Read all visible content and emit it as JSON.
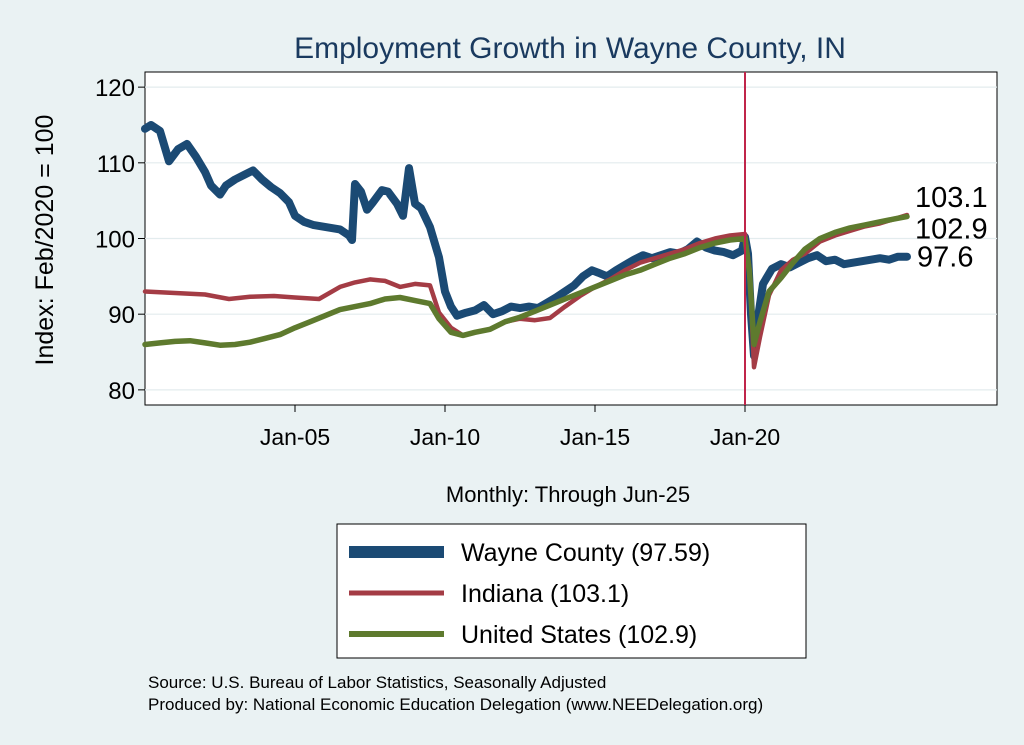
{
  "chart_data": {
    "type": "line",
    "title": "Employment Growth in Wayne  County, IN",
    "ylabel": "Index: Feb/2020 = 100",
    "xlabel": "Monthly: Through Jun-25",
    "ylim": [
      78,
      122
    ],
    "yticks": [
      80,
      90,
      100,
      110,
      120
    ],
    "xlim": [
      2000.0,
      2028.4
    ],
    "xticks": [
      {
        "label": "Jan-05",
        "x": 2005.0
      },
      {
        "label": "Jan-10",
        "x": 2010.0
      },
      {
        "label": "Jan-15",
        "x": 2015.0
      },
      {
        "label": "Jan-20",
        "x": 2020.0
      }
    ],
    "vline": {
      "x": 2020.0,
      "color": "#c0254a"
    },
    "grid": true,
    "series": [
      {
        "name": "Wayne  County",
        "color": "#1b4a74",
        "legend_label": "Wayne  County (97.59)",
        "end_label": "97.6",
        "points": [
          [
            2000.0,
            114.5
          ],
          [
            2000.2,
            115.0
          ],
          [
            2000.5,
            114.2
          ],
          [
            2000.8,
            110.2
          ],
          [
            2001.1,
            111.8
          ],
          [
            2001.4,
            112.5
          ],
          [
            2001.7,
            110.8
          ],
          [
            2002.0,
            108.8
          ],
          [
            2002.2,
            107.0
          ],
          [
            2002.5,
            105.8
          ],
          [
            2002.7,
            107.0
          ],
          [
            2003.0,
            107.8
          ],
          [
            2003.3,
            108.4
          ],
          [
            2003.6,
            109.0
          ],
          [
            2003.9,
            107.8
          ],
          [
            2004.2,
            106.8
          ],
          [
            2004.5,
            106.0
          ],
          [
            2004.8,
            104.8
          ],
          [
            2005.0,
            103.0
          ],
          [
            2005.3,
            102.2
          ],
          [
            2005.6,
            101.8
          ],
          [
            2005.9,
            101.6
          ],
          [
            2006.2,
            101.4
          ],
          [
            2006.5,
            101.2
          ],
          [
            2006.8,
            100.4
          ],
          [
            2006.9,
            99.8
          ],
          [
            2007.0,
            107.2
          ],
          [
            2007.2,
            106.2
          ],
          [
            2007.4,
            103.8
          ],
          [
            2007.6,
            104.8
          ],
          [
            2007.9,
            106.4
          ],
          [
            2008.1,
            106.2
          ],
          [
            2008.4,
            104.6
          ],
          [
            2008.6,
            103.0
          ],
          [
            2008.8,
            109.3
          ],
          [
            2009.0,
            104.6
          ],
          [
            2009.2,
            104.0
          ],
          [
            2009.5,
            101.5
          ],
          [
            2009.8,
            97.5
          ],
          [
            2010.0,
            93.0
          ],
          [
            2010.2,
            91.0
          ],
          [
            2010.4,
            89.8
          ],
          [
            2010.7,
            90.2
          ],
          [
            2011.0,
            90.5
          ],
          [
            2011.3,
            91.2
          ],
          [
            2011.6,
            90.0
          ],
          [
            2011.9,
            90.4
          ],
          [
            2012.2,
            91.0
          ],
          [
            2012.5,
            90.8
          ],
          [
            2012.8,
            91.0
          ],
          [
            2013.1,
            90.8
          ],
          [
            2013.4,
            91.5
          ],
          [
            2013.7,
            92.2
          ],
          [
            2014.0,
            93.0
          ],
          [
            2014.3,
            93.8
          ],
          [
            2014.6,
            95.0
          ],
          [
            2014.9,
            95.8
          ],
          [
            2015.1,
            95.5
          ],
          [
            2015.4,
            95.0
          ],
          [
            2015.7,
            95.8
          ],
          [
            2016.0,
            96.5
          ],
          [
            2016.3,
            97.2
          ],
          [
            2016.6,
            97.8
          ],
          [
            2016.9,
            97.4
          ],
          [
            2017.2,
            97.8
          ],
          [
            2017.5,
            98.2
          ],
          [
            2017.8,
            98.0
          ],
          [
            2018.1,
            98.6
          ],
          [
            2018.4,
            99.6
          ],
          [
            2018.7,
            98.8
          ],
          [
            2019.0,
            98.4
          ],
          [
            2019.3,
            98.2
          ],
          [
            2019.6,
            97.8
          ],
          [
            2019.9,
            98.4
          ],
          [
            2020.0,
            100.2
          ],
          [
            2020.1,
            98.0
          ],
          [
            2020.2,
            90.0
          ],
          [
            2020.3,
            84.5
          ],
          [
            2020.45,
            90.0
          ],
          [
            2020.6,
            94.0
          ],
          [
            2020.9,
            96.0
          ],
          [
            2021.2,
            96.6
          ],
          [
            2021.5,
            96.2
          ],
          [
            2021.8,
            96.8
          ],
          [
            2022.1,
            97.4
          ],
          [
            2022.4,
            97.8
          ],
          [
            2022.7,
            97.0
          ],
          [
            2023.0,
            97.2
          ],
          [
            2023.3,
            96.6
          ],
          [
            2023.6,
            96.8
          ],
          [
            2023.9,
            97.0
          ],
          [
            2024.2,
            97.2
          ],
          [
            2024.5,
            97.4
          ],
          [
            2024.8,
            97.2
          ],
          [
            2025.1,
            97.6
          ],
          [
            2025.4,
            97.59
          ]
        ]
      },
      {
        "name": "Indiana",
        "color": "#a43c45",
        "legend_label": "Indiana (103.1)",
        "end_label": "103.1",
        "points": [
          [
            2000.0,
            93.0
          ],
          [
            2001.0,
            92.8
          ],
          [
            2002.0,
            92.6
          ],
          [
            2002.8,
            92.0
          ],
          [
            2003.5,
            92.3
          ],
          [
            2004.3,
            92.4
          ],
          [
            2005.0,
            92.2
          ],
          [
            2005.8,
            92.0
          ],
          [
            2006.5,
            93.6
          ],
          [
            2007.0,
            94.2
          ],
          [
            2007.5,
            94.6
          ],
          [
            2008.0,
            94.4
          ],
          [
            2008.5,
            93.6
          ],
          [
            2009.0,
            94.0
          ],
          [
            2009.5,
            93.8
          ],
          [
            2009.8,
            90.2
          ],
          [
            2010.2,
            88.2
          ],
          [
            2010.6,
            87.2
          ],
          [
            2011.0,
            87.6
          ],
          [
            2011.5,
            88.0
          ],
          [
            2012.0,
            89.0
          ],
          [
            2012.5,
            89.4
          ],
          [
            2013.0,
            89.2
          ],
          [
            2013.5,
            89.5
          ],
          [
            2014.0,
            91.0
          ],
          [
            2014.5,
            92.4
          ],
          [
            2015.0,
            93.6
          ],
          [
            2015.5,
            94.6
          ],
          [
            2016.0,
            95.8
          ],
          [
            2016.5,
            96.8
          ],
          [
            2017.0,
            97.4
          ],
          [
            2017.5,
            98.0
          ],
          [
            2018.0,
            98.6
          ],
          [
            2018.5,
            99.4
          ],
          [
            2019.0,
            100.0
          ],
          [
            2019.5,
            100.4
          ],
          [
            2020.0,
            100.6
          ],
          [
            2020.15,
            96.0
          ],
          [
            2020.3,
            83.0
          ],
          [
            2020.5,
            87.0
          ],
          [
            2020.8,
            92.5
          ],
          [
            2021.2,
            95.8
          ],
          [
            2021.6,
            97.2
          ],
          [
            2022.0,
            98.0
          ],
          [
            2022.5,
            99.6
          ],
          [
            2023.0,
            100.4
          ],
          [
            2023.5,
            101.0
          ],
          [
            2024.0,
            101.6
          ],
          [
            2024.5,
            102.0
          ],
          [
            2025.0,
            102.6
          ],
          [
            2025.4,
            103.1
          ]
        ]
      },
      {
        "name": "United States",
        "color": "#5e7a2e",
        "legend_label": "United States (102.9)",
        "end_label": "102.9",
        "points": [
          [
            2000.0,
            86.0
          ],
          [
            2000.5,
            86.2
          ],
          [
            2001.0,
            86.4
          ],
          [
            2001.5,
            86.5
          ],
          [
            2002.0,
            86.2
          ],
          [
            2002.5,
            85.9
          ],
          [
            2003.0,
            86.0
          ],
          [
            2003.5,
            86.3
          ],
          [
            2004.0,
            86.8
          ],
          [
            2004.5,
            87.3
          ],
          [
            2005.0,
            88.2
          ],
          [
            2005.5,
            89.0
          ],
          [
            2006.0,
            89.8
          ],
          [
            2006.5,
            90.6
          ],
          [
            2007.0,
            91.0
          ],
          [
            2007.5,
            91.4
          ],
          [
            2008.0,
            92.0
          ],
          [
            2008.5,
            92.2
          ],
          [
            2009.0,
            91.8
          ],
          [
            2009.5,
            91.4
          ],
          [
            2009.8,
            89.4
          ],
          [
            2010.2,
            87.6
          ],
          [
            2010.6,
            87.2
          ],
          [
            2011.0,
            87.6
          ],
          [
            2011.5,
            88.0
          ],
          [
            2012.0,
            89.0
          ],
          [
            2012.5,
            89.6
          ],
          [
            2013.0,
            90.4
          ],
          [
            2013.5,
            91.2
          ],
          [
            2014.0,
            92.0
          ],
          [
            2014.5,
            92.8
          ],
          [
            2015.0,
            93.6
          ],
          [
            2015.5,
            94.4
          ],
          [
            2016.0,
            95.2
          ],
          [
            2016.5,
            95.8
          ],
          [
            2017.0,
            96.6
          ],
          [
            2017.5,
            97.4
          ],
          [
            2018.0,
            98.0
          ],
          [
            2018.5,
            98.8
          ],
          [
            2019.0,
            99.4
          ],
          [
            2019.5,
            99.8
          ],
          [
            2020.0,
            100.0
          ],
          [
            2020.15,
            95.5
          ],
          [
            2020.3,
            86.0
          ],
          [
            2020.5,
            89.0
          ],
          [
            2020.8,
            93.0
          ],
          [
            2021.2,
            94.8
          ],
          [
            2021.6,
            96.8
          ],
          [
            2022.0,
            98.6
          ],
          [
            2022.5,
            100.0
          ],
          [
            2023.0,
            100.8
          ],
          [
            2023.5,
            101.4
          ],
          [
            2024.0,
            101.8
          ],
          [
            2024.5,
            102.2
          ],
          [
            2025.0,
            102.6
          ],
          [
            2025.4,
            102.9
          ]
        ]
      }
    ]
  },
  "footer": {
    "source": "Source: U.S. Bureau of Labor Statistics, Seasonally Adjusted",
    "produced": "Produced by: National Economic Education Delegation (www.NEEDelegation.org)"
  }
}
